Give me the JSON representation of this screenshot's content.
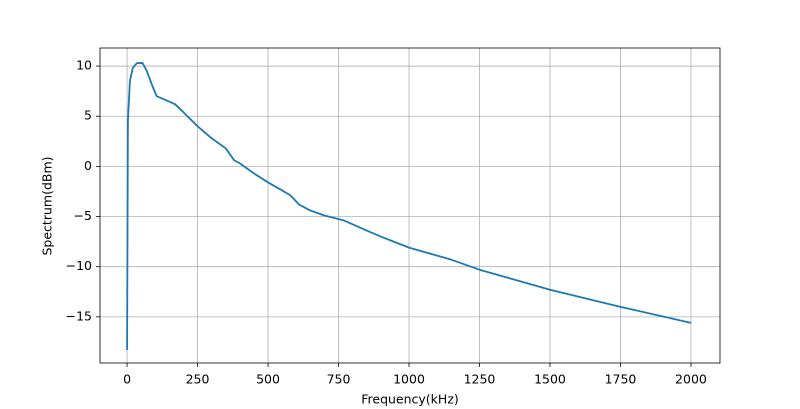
{
  "chart_data": {
    "type": "line",
    "xlabel": "Frequency(kHz)",
    "ylabel": "Spectrum(dBm)",
    "x": [
      0,
      3,
      10,
      20,
      35,
      55,
      70,
      90,
      105,
      130,
      170,
      200,
      250,
      300,
      350,
      380,
      400,
      450,
      500,
      550,
      580,
      610,
      650,
      700,
      770,
      850,
      900,
      1000,
      1050,
      1150,
      1250,
      1500,
      1750,
      2000
    ],
    "values": [
      -18.3,
      4.5,
      8.5,
      9.8,
      10.3,
      10.3,
      9.5,
      8,
      7,
      6.7,
      6.2,
      5.4,
      4.0,
      2.8,
      1.8,
      0.6,
      0.3,
      -0.7,
      -1.6,
      -2.4,
      -2.9,
      -3.8,
      -4.4,
      -4.9,
      -5.4,
      -6.4,
      -7.0,
      -8.1,
      -8.5,
      -9.3,
      -10.3,
      -12.3,
      -14.0,
      -15.6
    ],
    "color": "#1f77b4",
    "xlim": [
      -96,
      2103
    ],
    "ylim": [
      -19.6,
      11.8
    ],
    "xticks": [
      0,
      250,
      500,
      750,
      1000,
      1250,
      1500,
      1750,
      2000
    ],
    "yticks": [
      {
        "value": -15,
        "label": "−15"
      },
      {
        "value": -10,
        "label": "−10"
      },
      {
        "value": -5,
        "label": "−5"
      },
      0,
      5,
      10
    ],
    "grid": true
  }
}
